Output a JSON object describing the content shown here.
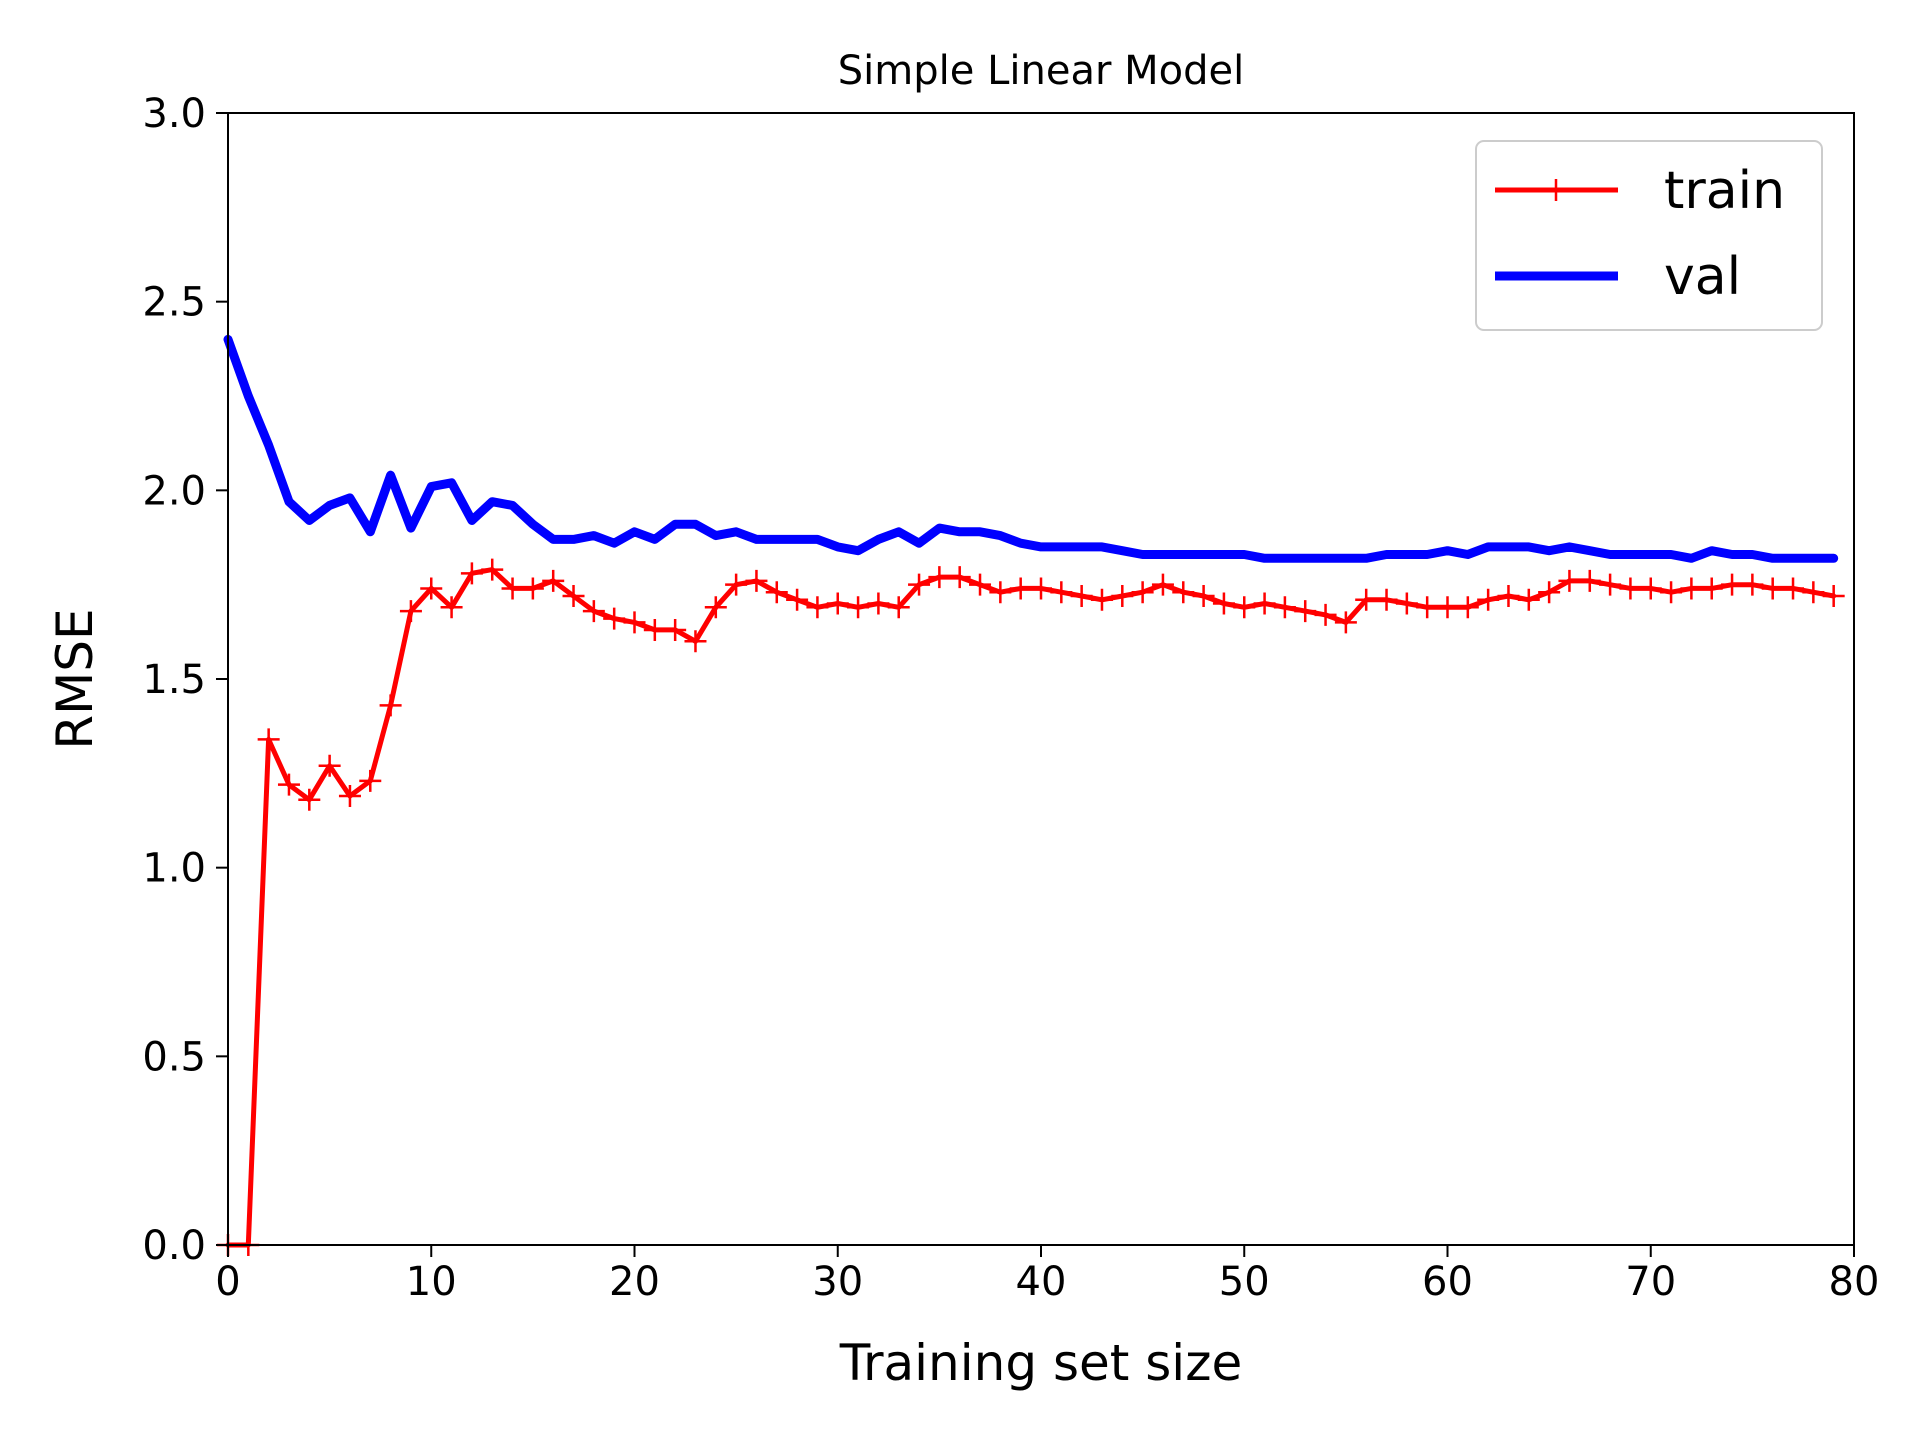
{
  "chart_data": {
    "type": "line",
    "title": "Simple Linear Model",
    "xlabel": "Training set size",
    "ylabel": "RMSE",
    "xlim": [
      0,
      80
    ],
    "ylim": [
      0,
      3.0
    ],
    "xticks": [
      0,
      10,
      20,
      30,
      40,
      50,
      60,
      70,
      80
    ],
    "xtick_labels": [
      "0",
      "10",
      "20",
      "30",
      "40",
      "50",
      "60",
      "70",
      "80"
    ],
    "yticks": [
      0,
      0.5,
      1.0,
      1.5,
      2.0,
      2.5,
      3.0
    ],
    "ytick_labels": [
      "0.0",
      "0.5",
      "1.0",
      "1.5",
      "2.0",
      "2.5",
      "3.0"
    ],
    "grid": false,
    "legend_position": "top-right",
    "x": [
      0,
      1,
      2,
      3,
      4,
      5,
      6,
      7,
      8,
      9,
      10,
      11,
      12,
      13,
      14,
      15,
      16,
      17,
      18,
      19,
      20,
      21,
      22,
      23,
      24,
      25,
      26,
      27,
      28,
      29,
      30,
      31,
      32,
      33,
      34,
      35,
      36,
      37,
      38,
      39,
      40,
      41,
      42,
      43,
      44,
      45,
      46,
      47,
      48,
      49,
      50,
      51,
      52,
      53,
      54,
      55,
      56,
      57,
      58,
      59,
      60,
      61,
      62,
      63,
      64,
      65,
      66,
      67,
      68,
      69,
      70,
      71,
      72,
      73,
      74,
      75,
      76,
      77,
      78,
      79
    ],
    "series": [
      {
        "name": "train",
        "color": "#ff0000",
        "marker": "+",
        "values": [
          0.0,
          0.0,
          1.34,
          1.22,
          1.18,
          1.27,
          1.19,
          1.23,
          1.43,
          1.68,
          1.74,
          1.69,
          1.78,
          1.79,
          1.74,
          1.74,
          1.76,
          1.72,
          1.68,
          1.66,
          1.65,
          1.63,
          1.63,
          1.6,
          1.69,
          1.75,
          1.76,
          1.73,
          1.71,
          1.69,
          1.7,
          1.69,
          1.7,
          1.69,
          1.75,
          1.77,
          1.77,
          1.75,
          1.73,
          1.74,
          1.74,
          1.73,
          1.72,
          1.71,
          1.72,
          1.73,
          1.75,
          1.73,
          1.72,
          1.7,
          1.69,
          1.7,
          1.69,
          1.68,
          1.67,
          1.65,
          1.71,
          1.71,
          1.7,
          1.69,
          1.69,
          1.69,
          1.71,
          1.72,
          1.71,
          1.73,
          1.76,
          1.76,
          1.75,
          1.74,
          1.74,
          1.73,
          1.74,
          1.74,
          1.75,
          1.75,
          1.74,
          1.74,
          1.73,
          1.72
        ]
      },
      {
        "name": "val",
        "color": "#0000ff",
        "marker": "",
        "values": [
          2.4,
          2.25,
          2.12,
          1.97,
          1.92,
          1.96,
          1.98,
          1.89,
          2.04,
          1.9,
          2.01,
          2.02,
          1.92,
          1.97,
          1.96,
          1.91,
          1.87,
          1.87,
          1.88,
          1.86,
          1.89,
          1.87,
          1.91,
          1.91,
          1.88,
          1.89,
          1.87,
          1.87,
          1.87,
          1.87,
          1.85,
          1.84,
          1.87,
          1.89,
          1.86,
          1.9,
          1.89,
          1.89,
          1.88,
          1.86,
          1.85,
          1.85,
          1.85,
          1.85,
          1.84,
          1.83,
          1.83,
          1.83,
          1.83,
          1.83,
          1.83,
          1.82,
          1.82,
          1.82,
          1.82,
          1.82,
          1.82,
          1.83,
          1.83,
          1.83,
          1.84,
          1.83,
          1.85,
          1.85,
          1.85,
          1.84,
          1.85,
          1.84,
          1.83,
          1.83,
          1.83,
          1.83,
          1.82,
          1.84,
          1.83,
          1.83,
          1.82,
          1.82,
          1.82,
          1.82
        ]
      }
    ]
  }
}
